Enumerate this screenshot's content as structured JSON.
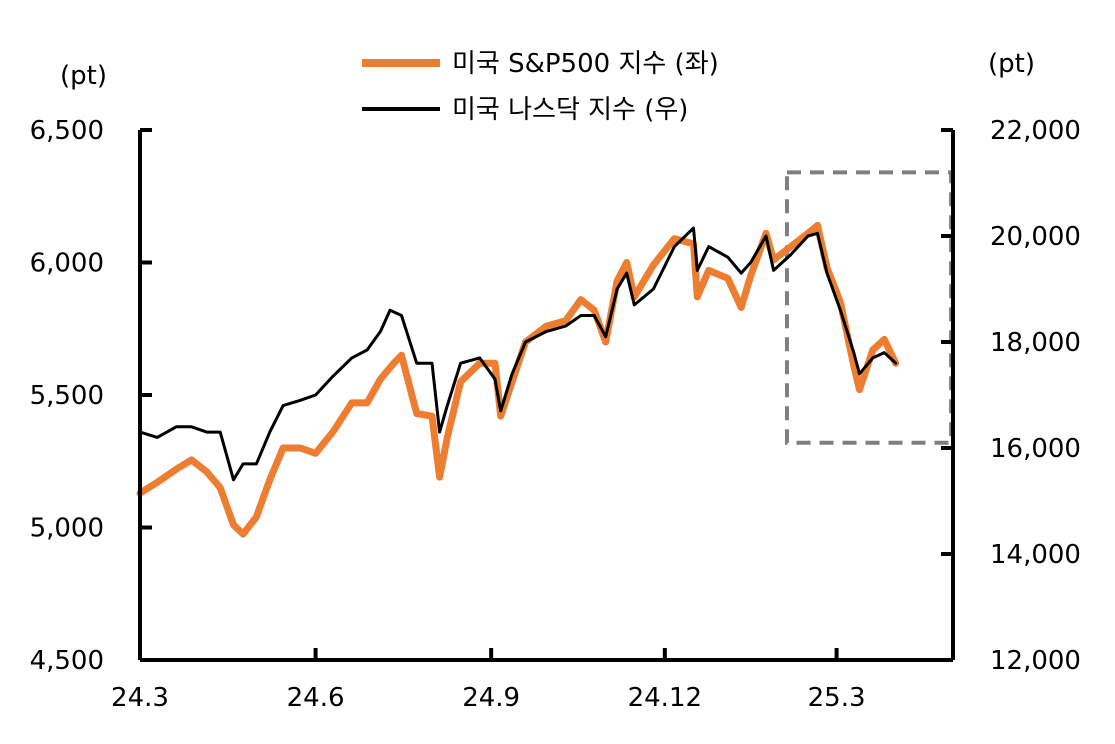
{
  "chart_data": {
    "type": "line",
    "left_axis": {
      "unit": "(pt)",
      "ylim": [
        4500,
        6500
      ],
      "ticks": [
        4500,
        5000,
        5500,
        6000,
        6500
      ],
      "tick_labels": [
        "4,500",
        "5,000",
        "5,500",
        "6,000",
        "6,500"
      ]
    },
    "right_axis": {
      "unit": "(pt)",
      "ylim": [
        12000,
        22000
      ],
      "ticks": [
        12000,
        14000,
        16000,
        18000,
        20000,
        22000
      ],
      "tick_labels": [
        "12,000",
        "14,000",
        "16,000",
        "18,000",
        "20,000",
        "22,000"
      ]
    },
    "x_axis": {
      "start": "2024-03",
      "end": "2025-05",
      "ticks": [
        "2024-03",
        "2024-06",
        "2024-09",
        "2024-12",
        "2025-03"
      ],
      "tick_labels": [
        "24.3",
        "24.6",
        "24.9",
        "24.12",
        "25.3"
      ]
    },
    "legend": {
      "position": "top-center"
    },
    "highlight_box": {
      "x_range": [
        "2025-02-03",
        "2025-04-30"
      ],
      "y_range_left": [
        5320,
        6340
      ]
    },
    "series": [
      {
        "name": "미국 S&P500 지수 (좌)",
        "axis": "left",
        "color": "#ED7D31",
        "points": [
          [
            "2024-03-01",
            5130
          ],
          [
            "2024-03-10",
            5170
          ],
          [
            "2024-03-20",
            5220
          ],
          [
            "2024-03-28",
            5255
          ],
          [
            "2024-04-05",
            5210
          ],
          [
            "2024-04-12",
            5150
          ],
          [
            "2024-04-19",
            5010
          ],
          [
            "2024-04-24",
            4975
          ],
          [
            "2024-05-01",
            5040
          ],
          [
            "2024-05-08",
            5180
          ],
          [
            "2024-05-15",
            5300
          ],
          [
            "2024-05-24",
            5300
          ],
          [
            "2024-06-01",
            5280
          ],
          [
            "2024-06-10",
            5360
          ],
          [
            "2024-06-20",
            5470
          ],
          [
            "2024-06-28",
            5470
          ],
          [
            "2024-07-05",
            5560
          ],
          [
            "2024-07-12",
            5620
          ],
          [
            "2024-07-16",
            5650
          ],
          [
            "2024-07-24",
            5430
          ],
          [
            "2024-08-01",
            5420
          ],
          [
            "2024-08-05",
            5190
          ],
          [
            "2024-08-09",
            5340
          ],
          [
            "2024-08-16",
            5550
          ],
          [
            "2024-08-26",
            5620
          ],
          [
            "2024-09-03",
            5620
          ],
          [
            "2024-09-06",
            5420
          ],
          [
            "2024-09-12",
            5550
          ],
          [
            "2024-09-19",
            5700
          ],
          [
            "2024-09-30",
            5760
          ],
          [
            "2024-10-10",
            5780
          ],
          [
            "2024-10-18",
            5860
          ],
          [
            "2024-10-25",
            5820
          ],
          [
            "2024-10-31",
            5700
          ],
          [
            "2024-11-06",
            5930
          ],
          [
            "2024-11-11",
            6000
          ],
          [
            "2024-11-15",
            5870
          ],
          [
            "2024-11-25",
            5990
          ],
          [
            "2024-12-06",
            6090
          ],
          [
            "2024-12-16",
            6070
          ],
          [
            "2024-12-18",
            5870
          ],
          [
            "2024-12-24",
            5970
          ],
          [
            "2025-01-03",
            5940
          ],
          [
            "2025-01-10",
            5830
          ],
          [
            "2025-01-15",
            5950
          ],
          [
            "2025-01-23",
            6110
          ],
          [
            "2025-01-27",
            6010
          ],
          [
            "2025-02-05",
            6060
          ],
          [
            "2025-02-14",
            6110
          ],
          [
            "2025-02-19",
            6140
          ],
          [
            "2025-02-24",
            5980
          ],
          [
            "2025-03-03",
            5850
          ],
          [
            "2025-03-10",
            5610
          ],
          [
            "2025-03-13",
            5520
          ],
          [
            "2025-03-20",
            5670
          ],
          [
            "2025-03-26",
            5710
          ],
          [
            "2025-04-01",
            5620
          ]
        ]
      },
      {
        "name": "미국 나스닥 지수 (우)",
        "axis": "right",
        "color": "#000000",
        "points": [
          [
            "2024-03-01",
            16300
          ],
          [
            "2024-03-10",
            16200
          ],
          [
            "2024-03-20",
            16400
          ],
          [
            "2024-03-28",
            16400
          ],
          [
            "2024-04-05",
            16300
          ],
          [
            "2024-04-12",
            16300
          ],
          [
            "2024-04-19",
            15400
          ],
          [
            "2024-04-24",
            15700
          ],
          [
            "2024-05-01",
            15700
          ],
          [
            "2024-05-08",
            16300
          ],
          [
            "2024-05-15",
            16800
          ],
          [
            "2024-05-24",
            16900
          ],
          [
            "2024-06-01",
            17000
          ],
          [
            "2024-06-10",
            17350
          ],
          [
            "2024-06-20",
            17700
          ],
          [
            "2024-06-28",
            17850
          ],
          [
            "2024-07-05",
            18200
          ],
          [
            "2024-07-10",
            18600
          ],
          [
            "2024-07-16",
            18500
          ],
          [
            "2024-07-24",
            17600
          ],
          [
            "2024-08-01",
            17600
          ],
          [
            "2024-08-05",
            16300
          ],
          [
            "2024-08-09",
            16800
          ],
          [
            "2024-08-16",
            17600
          ],
          [
            "2024-08-26",
            17700
          ],
          [
            "2024-09-03",
            17300
          ],
          [
            "2024-09-06",
            16700
          ],
          [
            "2024-09-12",
            17400
          ],
          [
            "2024-09-19",
            18000
          ],
          [
            "2024-09-30",
            18200
          ],
          [
            "2024-10-10",
            18300
          ],
          [
            "2024-10-18",
            18500
          ],
          [
            "2024-10-25",
            18500
          ],
          [
            "2024-10-31",
            18100
          ],
          [
            "2024-11-06",
            19000
          ],
          [
            "2024-11-11",
            19300
          ],
          [
            "2024-11-15",
            18700
          ],
          [
            "2024-11-25",
            19000
          ],
          [
            "2024-12-06",
            19800
          ],
          [
            "2024-12-16",
            20150
          ],
          [
            "2024-12-18",
            19350
          ],
          [
            "2024-12-24",
            19800
          ],
          [
            "2025-01-03",
            19600
          ],
          [
            "2025-01-10",
            19300
          ],
          [
            "2025-01-15",
            19500
          ],
          [
            "2025-01-23",
            20000
          ],
          [
            "2025-01-27",
            19350
          ],
          [
            "2025-02-05",
            19650
          ],
          [
            "2025-02-14",
            20000
          ],
          [
            "2025-02-19",
            20050
          ],
          [
            "2025-02-24",
            19300
          ],
          [
            "2025-03-03",
            18600
          ],
          [
            "2025-03-10",
            17800
          ],
          [
            "2025-03-13",
            17400
          ],
          [
            "2025-03-20",
            17700
          ],
          [
            "2025-03-26",
            17800
          ],
          [
            "2025-04-01",
            17600
          ]
        ]
      }
    ]
  }
}
